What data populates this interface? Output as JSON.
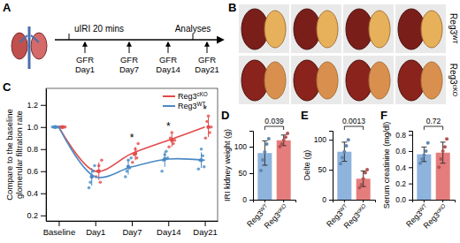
{
  "figure": {
    "panel_labels": [
      "A",
      "B",
      "C",
      "D",
      "E",
      "F"
    ],
    "diagram": {
      "event": "uIRI 20 mins",
      "analyses": "Analyses",
      "timepoints": [
        "GFR Day1",
        "GFR Day7",
        "GFR Day14",
        "GFR Day21"
      ]
    },
    "photos": {
      "rows": [
        "Reg3WT",
        "Reg3cKO"
      ]
    }
  },
  "chart_data": [
    {
      "type": "line",
      "panel": "C",
      "y_label": "Compare to the baseline glomerular filtration rate",
      "categories": [
        "Baseline",
        "Day1",
        "Day7",
        "Day14",
        "Day21"
      ],
      "series": [
        {
          "name": "Reg3cKO",
          "color": "#e34a4a",
          "values": [
            1.0,
            0.6,
            0.76,
            0.88,
            1.0
          ],
          "errors": [
            0,
            0.08,
            0.06,
            0.06,
            0.09
          ],
          "points": [
            [
              1,
              1,
              1,
              1,
              1
            ],
            [
              0.55,
              0.6,
              0.65,
              0.5,
              0.7
            ],
            [
              0.68,
              0.75,
              0.8,
              0.72,
              0.85
            ],
            [
              0.82,
              0.9,
              0.95,
              0.85,
              0.88
            ],
            [
              0.9,
              1.05,
              1.1,
              0.95,
              1.0
            ]
          ]
        },
        {
          "name": "Reg3WT",
          "color": "#4a8ac4",
          "values": [
            1.0,
            0.55,
            0.64,
            0.71,
            0.7
          ],
          "errors": [
            0,
            0.08,
            0.07,
            0.07,
            0.07
          ],
          "points": [
            [
              1,
              1,
              1,
              1,
              1
            ],
            [
              0.45,
              0.5,
              0.55,
              0.6,
              0.65
            ],
            [
              0.55,
              0.6,
              0.7,
              0.63,
              0.72
            ],
            [
              0.6,
              0.7,
              0.75,
              0.78,
              0.72
            ],
            [
              0.62,
              0.7,
              0.8,
              0.74,
              0.64
            ]
          ]
        }
      ],
      "annotations": [
        {
          "text": "*",
          "category": "Day7"
        },
        {
          "text": "*",
          "category": "Day14"
        },
        {
          "text": "*",
          "category": "Day21"
        }
      ],
      "ylim": [
        0.15,
        1.35
      ],
      "yticks": [
        0.2,
        0.4,
        0.6,
        0.8,
        {
          "value": 1,
          "label": "1.0"
        },
        1.2
      ],
      "legend": "upper right"
    },
    {
      "type": "bar",
      "panel": "D",
      "y_label": "IRI kidney weight (g)",
      "categories": [
        "Reg3WT",
        "Reg3cKO"
      ],
      "values": [
        88,
        112
      ],
      "errors": [
        23,
        10
      ],
      "points": [
        [
          55,
          75,
          90,
          105,
          115
        ],
        [
          100,
          105,
          112,
          118,
          125
        ]
      ],
      "colors": [
        "#7aa6d6",
        "#e06666"
      ],
      "annotations": [
        {
          "text": "0.039"
        }
      ],
      "ylim": [
        0,
        130
      ],
      "yticks": [
        0,
        50,
        100
      ]
    },
    {
      "type": "bar",
      "panel": "E",
      "y_label": "Delte (g)",
      "categories": [
        "Reg3WT",
        "Reg3cKO"
      ],
      "values": [
        80,
        35
      ],
      "errors": [
        16,
        13
      ],
      "points": [
        [
          60,
          70,
          80,
          90,
          100
        ],
        [
          20,
          25,
          35,
          45,
          50
        ]
      ],
      "colors": [
        "#7aa6d6",
        "#e06666"
      ],
      "annotations": [
        {
          "text": "0.0013"
        }
      ],
      "ylim": [
        0,
        115
      ],
      "yticks": [
        0,
        50,
        100
      ]
    },
    {
      "type": "bar",
      "panel": "F",
      "y_label": "Serum creatinine (mg/dl)",
      "categories": [
        "Reg3WT",
        "Reg3cKO"
      ],
      "values": [
        0.56,
        0.58
      ],
      "errors": [
        0.09,
        0.13
      ],
      "points": [
        [
          0.45,
          0.5,
          0.55,
          0.6,
          0.7
        ],
        [
          0.4,
          0.5,
          0.6,
          0.65,
          0.75
        ]
      ],
      "colors": [
        "#7aa6d6",
        "#e06666"
      ],
      "annotations": [
        {
          "text": "0.72"
        }
      ],
      "ylim": [
        0,
        0.85
      ],
      "yticks": [
        {
          "value": 0,
          "label": "0.0"
        },
        0.2,
        0.4,
        0.6,
        0.8
      ]
    }
  ]
}
